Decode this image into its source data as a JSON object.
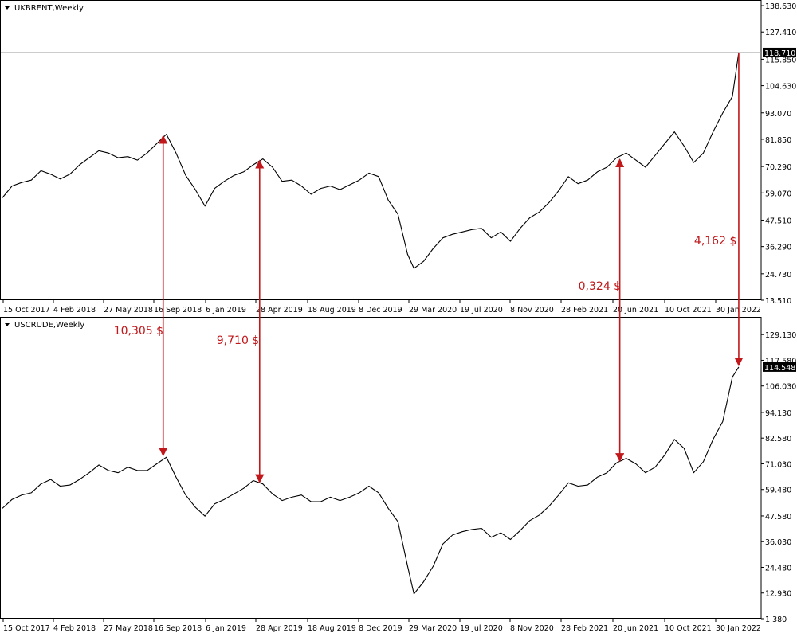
{
  "colors": {
    "line": "#000000",
    "frame": "#000000",
    "arrow": "#c0181b",
    "annotation": "#c0181b",
    "price_tag_bg": "#000000",
    "price_tag_text": "#ffffff",
    "hline": "#9a9a9a"
  },
  "chart_data": [
    {
      "type": "line",
      "title": "UKBRENT,Weekly",
      "x_ticks": [
        "15 Oct 2017",
        "4 Feb 2018",
        "27 May 2018",
        "16 Sep 2018",
        "6 Jan 2019",
        "28 Apr 2019",
        "18 Aug 2019",
        "8 Dec 2019",
        "29 Mar 2020",
        "19 Jul 2020",
        "8 Nov 2020",
        "28 Feb 2021",
        "20 Jun 2021",
        "10 Oct 2021",
        "30 Jan 2022"
      ],
      "y_ticks": [
        "138.630",
        "127.410",
        "115.850",
        "104.630",
        "93.070",
        "81.850",
        "70.290",
        "59.070",
        "47.510",
        "36.290",
        "24.730",
        "13.510"
      ],
      "ylim": [
        13.51,
        140.0
      ],
      "current_price": "118.710",
      "current_value": 118.71,
      "grid": false,
      "series": [
        {
          "x": [
            "2017-10-15",
            "2017-11-05",
            "2017-11-26",
            "2017-12-17",
            "2018-01-07",
            "2018-01-28",
            "2018-02-18",
            "2018-03-11",
            "2018-04-01",
            "2018-04-22",
            "2018-05-13",
            "2018-06-03",
            "2018-06-24",
            "2018-07-15",
            "2018-08-05",
            "2018-08-26",
            "2018-09-16",
            "2018-10-07",
            "2018-10-28",
            "2018-11-18",
            "2018-12-09",
            "2018-12-30",
            "2019-01-20",
            "2019-02-10",
            "2019-03-03",
            "2019-03-24",
            "2019-04-14",
            "2019-05-05",
            "2019-05-26",
            "2019-06-16",
            "2019-07-07",
            "2019-07-28",
            "2019-08-18",
            "2019-09-08",
            "2019-09-29",
            "2019-10-20",
            "2019-11-10",
            "2019-12-01",
            "2019-12-22",
            "2020-01-12",
            "2020-02-02",
            "2020-02-23",
            "2020-03-15",
            "2020-03-29",
            "2020-04-19",
            "2020-05-10",
            "2020-05-31",
            "2020-06-21",
            "2020-07-12",
            "2020-08-02",
            "2020-08-23",
            "2020-09-13",
            "2020-10-04",
            "2020-10-25",
            "2020-11-15",
            "2020-12-06",
            "2020-12-27",
            "2021-01-17",
            "2021-02-07",
            "2021-02-28",
            "2021-03-21",
            "2021-04-11",
            "2021-05-02",
            "2021-05-23",
            "2021-06-13",
            "2021-07-04",
            "2021-07-25",
            "2021-08-15",
            "2021-09-05",
            "2021-09-26",
            "2021-10-17",
            "2021-11-07",
            "2021-11-28",
            "2021-12-19",
            "2022-01-09",
            "2022-01-30",
            "2022-02-20",
            "2022-03-06"
          ],
          "y": [
            57.0,
            62.0,
            63.5,
            64.5,
            68.5,
            67.0,
            65.0,
            67.0,
            71.0,
            74.0,
            77.0,
            76.0,
            74.0,
            74.5,
            73.0,
            76.0,
            80.0,
            84.0,
            76.0,
            66.5,
            60.5,
            53.5,
            61.0,
            64.0,
            66.5,
            68.0,
            71.0,
            73.5,
            70.0,
            64.0,
            64.5,
            62.0,
            58.5,
            61.0,
            62.0,
            60.5,
            62.5,
            64.5,
            67.5,
            66.0,
            56.0,
            50.0,
            33.0,
            27.0,
            30.0,
            35.5,
            40.0,
            41.5,
            42.5,
            43.5,
            44.0,
            40.0,
            42.5,
            38.5,
            44.0,
            48.5,
            51.0,
            55.0,
            60.0,
            66.0,
            63.0,
            64.5,
            68.0,
            70.0,
            74.0,
            76.0,
            73.0,
            70.0,
            75.0,
            80.0,
            85.0,
            79.0,
            72.0,
            76.0,
            85.0,
            93.0,
            100.0,
            118.71
          ]
        }
      ]
    },
    {
      "type": "line",
      "title": "USCRUDE,Weekly",
      "x_ticks": [
        "15 Oct 2017",
        "4 Feb 2018",
        "27 May 2018",
        "16 Sep 2018",
        "6 Jan 2019",
        "28 Apr 2019",
        "18 Aug 2019",
        "8 Dec 2019",
        "29 Mar 2020",
        "19 Jul 2020",
        "8 Nov 2020",
        "28 Feb 2021",
        "20 Jun 2021",
        "10 Oct 2021",
        "30 Jan 2022"
      ],
      "y_ticks": [
        "129.130",
        "117.580",
        "106.030",
        "94.130",
        "82.580",
        "71.030",
        "59.480",
        "47.580",
        "36.030",
        "24.480",
        "12.930",
        "1.380"
      ],
      "ylim": [
        1.38,
        136.0
      ],
      "current_price": "114.548",
      "current_value": 114.548,
      "grid": false,
      "series": [
        {
          "x": [
            "2017-10-15",
            "2017-11-05",
            "2017-11-26",
            "2017-12-17",
            "2018-01-07",
            "2018-01-28",
            "2018-02-18",
            "2018-03-11",
            "2018-04-01",
            "2018-04-22",
            "2018-05-13",
            "2018-06-03",
            "2018-06-24",
            "2018-07-15",
            "2018-08-05",
            "2018-08-26",
            "2018-09-16",
            "2018-10-07",
            "2018-10-28",
            "2018-11-18",
            "2018-12-09",
            "2018-12-30",
            "2019-01-20",
            "2019-02-10",
            "2019-03-03",
            "2019-03-24",
            "2019-04-14",
            "2019-05-05",
            "2019-05-26",
            "2019-06-16",
            "2019-07-07",
            "2019-07-28",
            "2019-08-18",
            "2019-09-08",
            "2019-09-29",
            "2019-10-20",
            "2019-11-10",
            "2019-12-01",
            "2019-12-22",
            "2020-01-12",
            "2020-02-02",
            "2020-02-23",
            "2020-03-15",
            "2020-03-29",
            "2020-04-19",
            "2020-05-10",
            "2020-05-31",
            "2020-06-21",
            "2020-07-12",
            "2020-08-02",
            "2020-08-23",
            "2020-09-13",
            "2020-10-04",
            "2020-10-25",
            "2020-11-15",
            "2020-12-06",
            "2020-12-27",
            "2021-01-17",
            "2021-02-07",
            "2021-02-28",
            "2021-03-21",
            "2021-04-11",
            "2021-05-02",
            "2021-05-23",
            "2021-06-13",
            "2021-07-04",
            "2021-07-25",
            "2021-08-15",
            "2021-09-05",
            "2021-09-26",
            "2021-10-17",
            "2021-11-07",
            "2021-11-28",
            "2021-12-19",
            "2022-01-09",
            "2022-01-30",
            "2022-02-20",
            "2022-03-06"
          ],
          "y": [
            51.0,
            55.0,
            57.0,
            58.0,
            62.0,
            64.0,
            61.0,
            61.5,
            64.0,
            67.0,
            70.5,
            68.0,
            67.0,
            69.5,
            68.0,
            68.0,
            71.0,
            74.0,
            65.0,
            57.0,
            51.5,
            47.5,
            53.0,
            55.0,
            57.5,
            60.0,
            63.5,
            62.0,
            57.5,
            54.5,
            56.0,
            57.0,
            54.0,
            54.0,
            56.0,
            54.5,
            56.0,
            58.0,
            61.0,
            58.0,
            51.0,
            45.0,
            25.0,
            12.5,
            18.0,
            25.0,
            35.0,
            39.0,
            40.5,
            41.5,
            42.0,
            38.0,
            40.0,
            37.0,
            41.0,
            45.5,
            48.0,
            52.0,
            57.0,
            62.5,
            61.0,
            61.5,
            65.0,
            67.0,
            71.5,
            73.5,
            71.0,
            67.0,
            69.5,
            75.0,
            82.0,
            78.0,
            67.0,
            72.0,
            82.0,
            90.0,
            110.0,
            114.548
          ]
        }
      ]
    }
  ],
  "annotations": [
    {
      "text": "10,305 $",
      "date": "2018-09-30"
    },
    {
      "text": "9,710 $",
      "date": "2019-04-28"
    },
    {
      "text": "0,324 $",
      "date": "2021-06-20"
    },
    {
      "text": "4,162 $",
      "date": "2022-03-06"
    }
  ]
}
